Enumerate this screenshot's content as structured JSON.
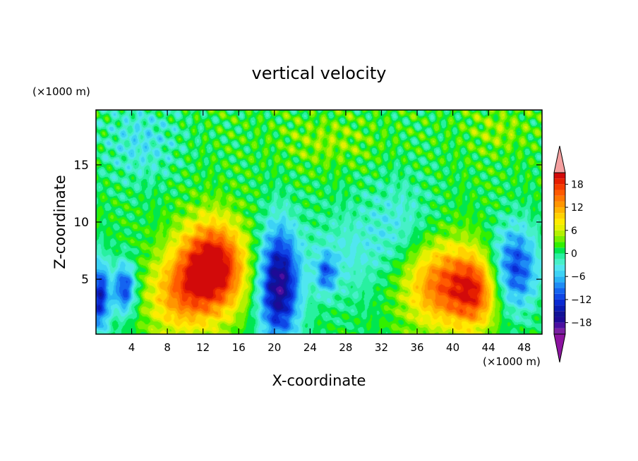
{
  "chart_data": {
    "type": "heatmap",
    "title": "vertical velocity",
    "xlabel": "X-coordinate",
    "ylabel": "Z-coordinate",
    "x_unit": "(×1000 m)",
    "y_unit": "(×1000 m)",
    "xlim": [
      0,
      50
    ],
    "ylim": [
      0.2,
      19.8
    ],
    "x_ticks": [
      4,
      8,
      12,
      16,
      20,
      24,
      28,
      32,
      36,
      40,
      44,
      48
    ],
    "y_ticks": [
      5,
      10,
      15
    ],
    "colorbar": {
      "ticks": [
        18,
        12,
        6,
        0,
        -6,
        -12,
        -18
      ],
      "levels": [
        -21,
        -19.5,
        -18,
        -16.5,
        -15,
        -13.5,
        -12,
        -10.5,
        -9,
        -7.5,
        -6,
        -4.5,
        -3,
        -1.5,
        0,
        1.5,
        3,
        4.5,
        6,
        7.5,
        9,
        10.5,
        12,
        13.5,
        15,
        16.5,
        18,
        19.5,
        21
      ],
      "colors": [
        "#7a1fa2",
        "#4b0fa0",
        "#1e0a96",
        "#121296",
        "#0a1ab4",
        "#0a2ad2",
        "#0f46e6",
        "#1464f0",
        "#1e8cf5",
        "#28b4f5",
        "#3cd2f5",
        "#50e6f0",
        "#46f0c8",
        "#28f0a0",
        "#00e650",
        "#32f000",
        "#78f000",
        "#b4f000",
        "#e6f000",
        "#ffeb00",
        "#ffd200",
        "#ffb400",
        "#ff9600",
        "#ff7800",
        "#ff5a00",
        "#f53c00",
        "#e61e00",
        "#d20a0a"
      ],
      "extend_low_color": "#8c14a0",
      "extend_high_color": "#f5a0a0"
    },
    "features": [
      {
        "x": 13,
        "z": 6,
        "w": 22,
        "sx": 2.6,
        "sz": 2.8
      },
      {
        "x": 9,
        "z": 3.5,
        "w": 9,
        "sx": 2.5,
        "sz": 2.5
      },
      {
        "x": 39,
        "z": 4.5,
        "w": 14,
        "sx": 3.2,
        "sz": 2.6
      },
      {
        "x": 42.5,
        "z": 3.8,
        "w": 11,
        "sx": 1.8,
        "sz": 2.2
      },
      {
        "x": 20.5,
        "z": 4.5,
        "w": -19,
        "sx": 1.6,
        "sz": 3.6
      },
      {
        "x": 3.2,
        "z": 4.2,
        "w": -13,
        "sx": 0.9,
        "sz": 1.6
      },
      {
        "x": 0.4,
        "z": 3.5,
        "w": -15,
        "sx": 0.8,
        "sz": 2.2
      },
      {
        "x": 47,
        "z": 6,
        "w": -13,
        "sx": 1.8,
        "sz": 2.6
      },
      {
        "x": 25.8,
        "z": 5.5,
        "w": -9,
        "sx": 0.8,
        "sz": 1.2
      },
      {
        "x": 34,
        "z": 10,
        "w": -4,
        "sx": 2.8,
        "sz": 3
      },
      {
        "x": 28,
        "z": 7,
        "w": -4,
        "sx": 3.5,
        "sz": 3
      },
      {
        "x": 5,
        "z": 17,
        "w": -5,
        "sx": 3,
        "sz": 2.5
      },
      {
        "x": 45,
        "z": 18,
        "w": 3,
        "sx": 2.5,
        "sz": 1.5
      },
      {
        "x": 26,
        "z": 17,
        "w": 3,
        "sx": 4,
        "sz": 1.5
      }
    ]
  }
}
